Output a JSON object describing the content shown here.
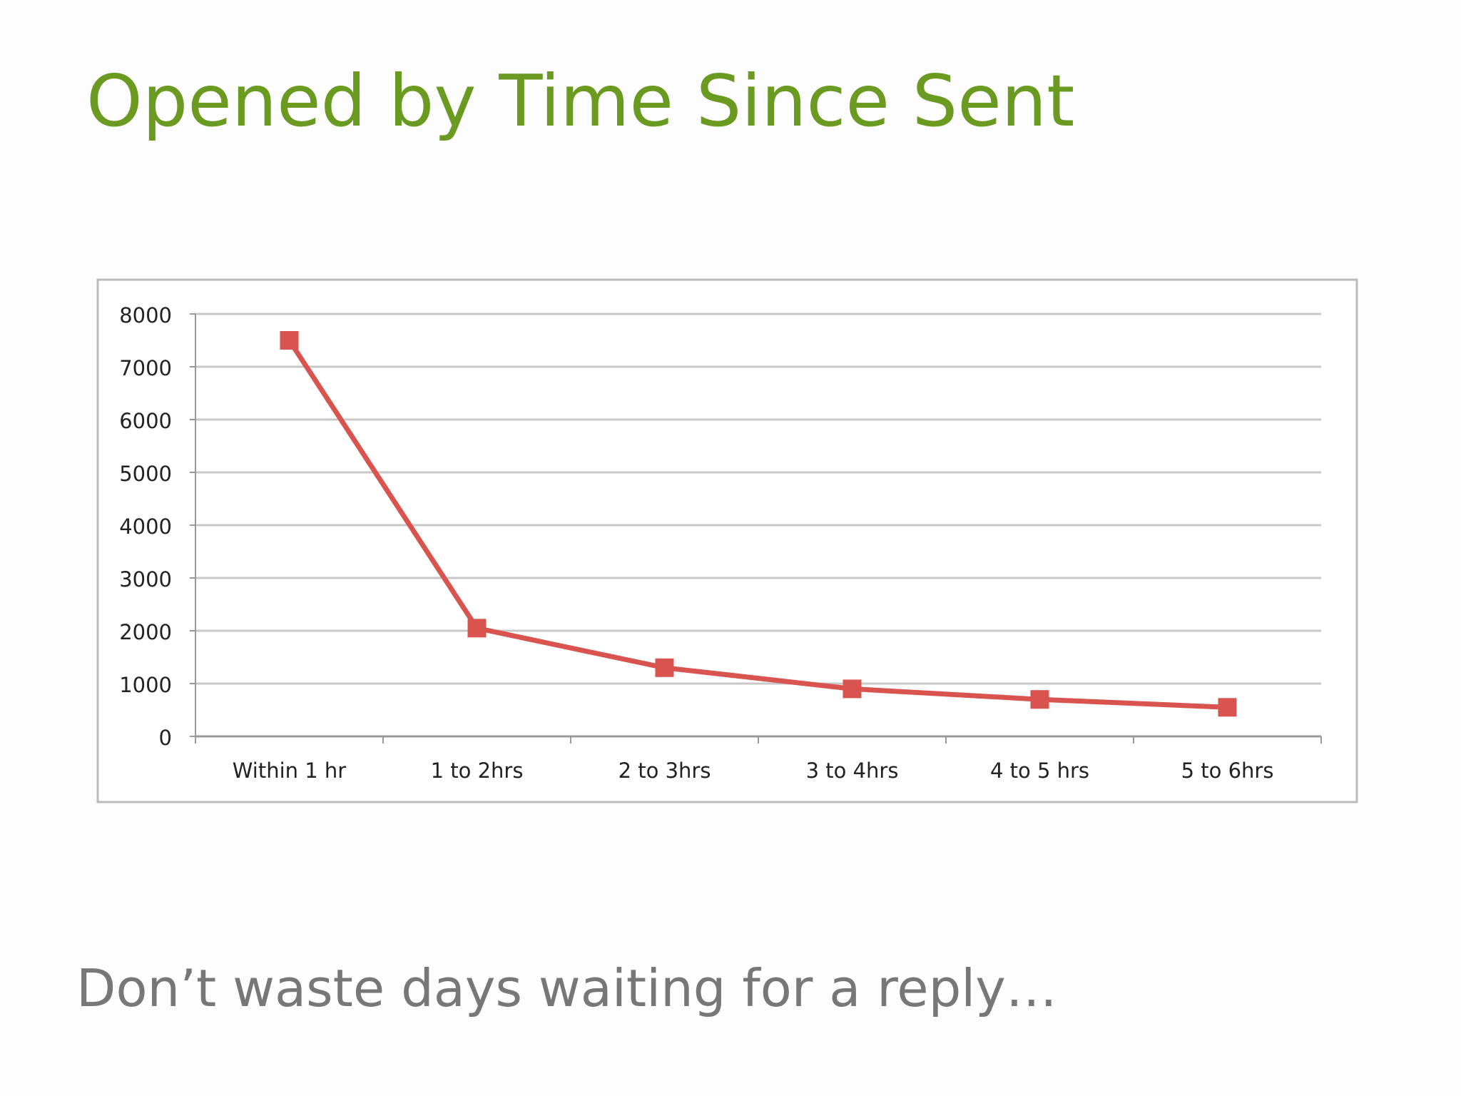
{
  "title": "Opened by Time Since Sent",
  "chart_data": {
    "type": "line",
    "categories": [
      "Within 1 hr",
      "1 to 2hrs",
      "2 to 3hrs",
      "3 to 4hrs",
      "4 to 5 hrs",
      "5 to 6hrs"
    ],
    "values": [
      7500,
      2050,
      1300,
      900,
      700,
      550
    ],
    "color": "#d9534f",
    "ylim": [
      0,
      8000
    ],
    "yticks": [
      0,
      1000,
      2000,
      3000,
      4000,
      5000,
      6000,
      7000,
      8000
    ],
    "grid": true
  },
  "caption": "Don’t waste days waiting for a reply…"
}
